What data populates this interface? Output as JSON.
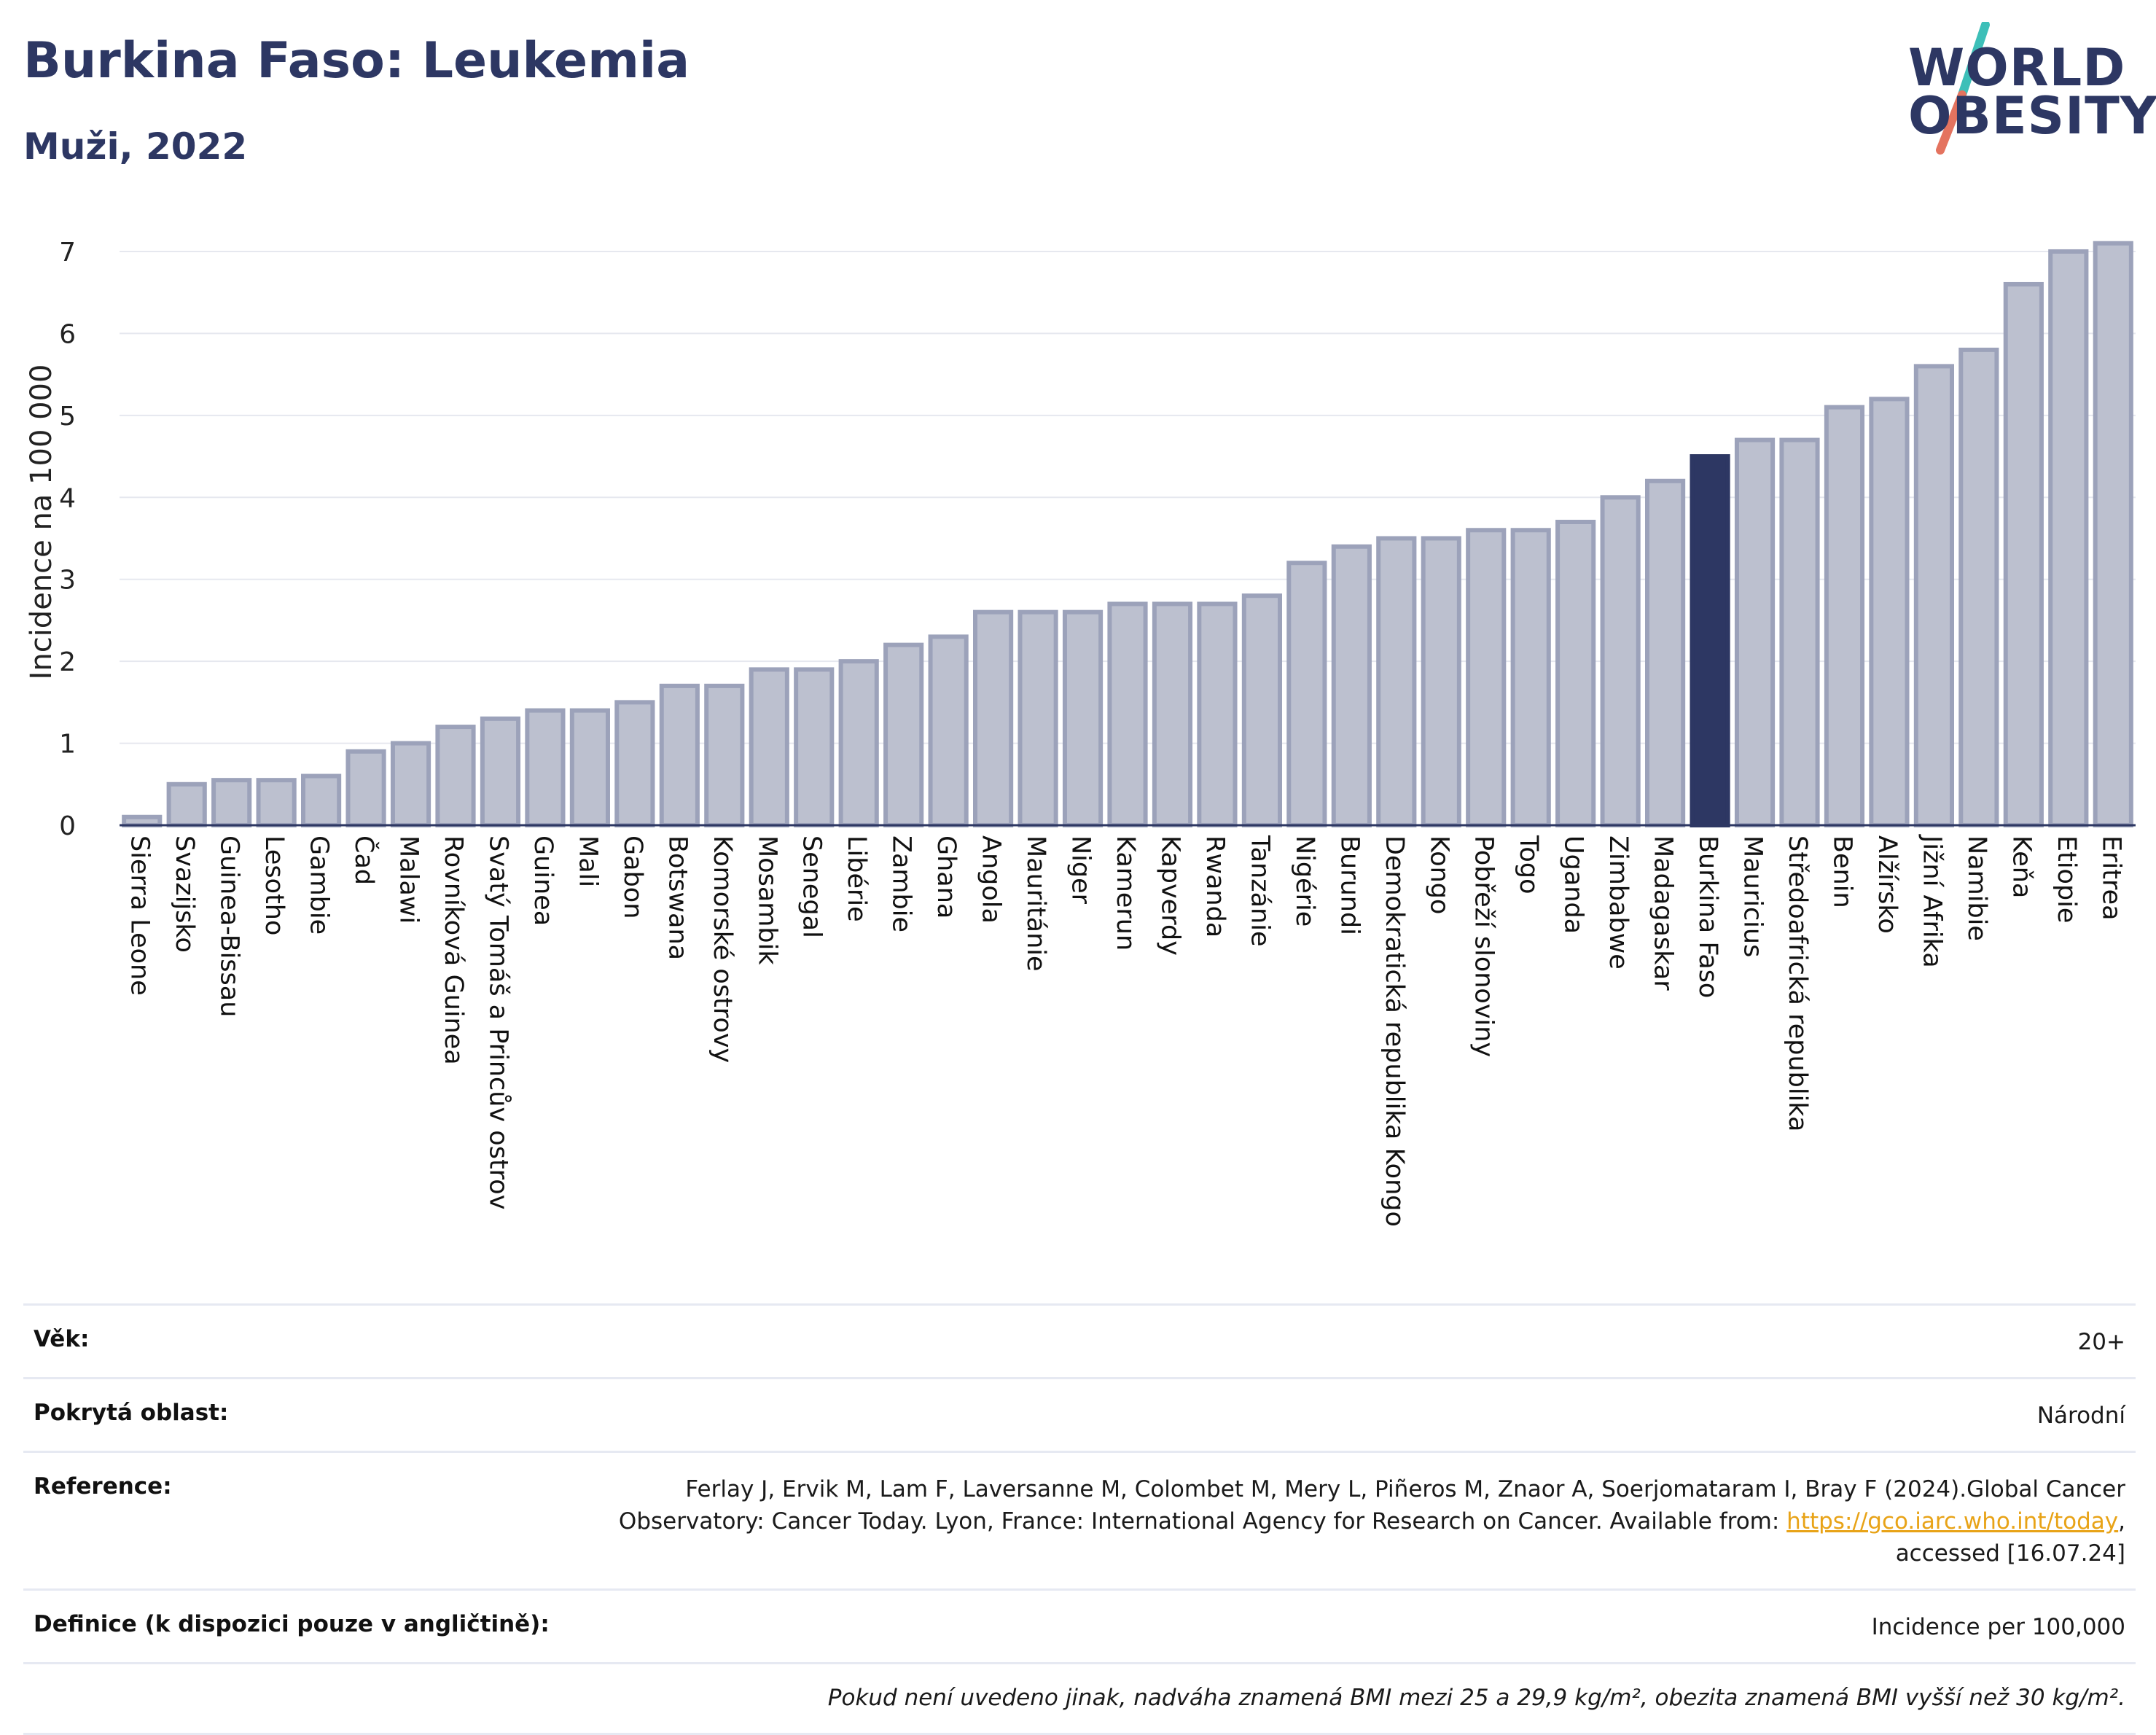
{
  "header": {
    "title": "Burkina Faso: Leukemia",
    "subtitle": "Muži, 2022"
  },
  "logo": {
    "line1": "WORLD",
    "line2": "OBESITY",
    "colors": {
      "text": "#2d3763",
      "slash_top": "#3dbfb8",
      "slash_bottom": "#e4735f"
    }
  },
  "chart_data": {
    "type": "bar",
    "ylabel": "Incidence na 100 000",
    "xlabel": "",
    "ylim": [
      0,
      7.4
    ],
    "yticks": [
      0,
      1,
      2,
      3,
      4,
      5,
      6,
      7
    ],
    "grid": true,
    "highlight": "Burkina Faso",
    "colors": {
      "bar": "#bcc0cf",
      "bar_border": "#9ca2ba",
      "highlight": "#2d3763",
      "grid": "#e6e8ef"
    },
    "categories": [
      "Sierra Leone",
      "Svazijsko",
      "Guinea-Bissau",
      "Lesotho",
      "Gambie",
      "Čad",
      "Malawi",
      "Rovníková Guinea",
      "Svatý Tomáš a Princův ostrov",
      "Guinea",
      "Mali",
      "Gabon",
      "Botswana",
      "Komorské ostrovy",
      "Mosambik",
      "Senegal",
      "Libérie",
      "Zambie",
      "Ghana",
      "Angola",
      "Mauritánie",
      "Niger",
      "Kamerun",
      "Kapverdy",
      "Rwanda",
      "Tanzánie",
      "Nigérie",
      "Burundi",
      "Demokratická republika Kongo",
      "Kongo",
      "Pobřeží slonoviny",
      "Togo",
      "Uganda",
      "Zimbabwe",
      "Madagaskar",
      "Burkina Faso",
      "Mauricius",
      "Středoafrická republika",
      "Benin",
      "Alžírsko",
      "Jižní Afrika",
      "Namibie",
      "Keňa",
      "Etiopie",
      "Eritrea"
    ],
    "values": [
      0.1,
      0.5,
      0.55,
      0.55,
      0.6,
      0.9,
      1.0,
      1.2,
      1.3,
      1.4,
      1.4,
      1.5,
      1.7,
      1.7,
      1.9,
      1.9,
      2.0,
      2.2,
      2.3,
      2.6,
      2.6,
      2.6,
      2.7,
      2.7,
      2.7,
      2.8,
      3.2,
      3.4,
      3.5,
      3.5,
      3.6,
      3.6,
      3.7,
      4.0,
      4.2,
      4.5,
      4.7,
      4.7,
      5.1,
      5.2,
      5.6,
      5.8,
      6.6,
      7.0,
      7.1
    ]
  },
  "info": {
    "age_label": "Věk:",
    "age_value": "20+",
    "area_label": "Pokrytá oblast:",
    "area_value": "Národní",
    "reference_label": "Reference:",
    "reference_line1": "Ferlay J, Ervik M, Lam F, Laversanne M, Colombet M, Mery L, Piñeros M, Znaor A, Soerjomataram I, Bray F (2024).Global Cancer",
    "reference_line2_pre": "Observatory: Cancer Today. Lyon, France: International Agency for Research on Cancer. Available from: ",
    "reference_link": "https://gco.iarc.who.int/today",
    "reference_line2_post": ",",
    "reference_line3": "accessed [16.07.24]",
    "definition_label": "Definice (k dispozici pouze v angličtině):",
    "definition_value": "Incidence per 100,000",
    "note": "Pokud není uvedeno jinak, nadváha znamená BMI mezi 25 a 29,9 kg/m², obezita znamená BMI vyšší než 30 kg/m²."
  }
}
